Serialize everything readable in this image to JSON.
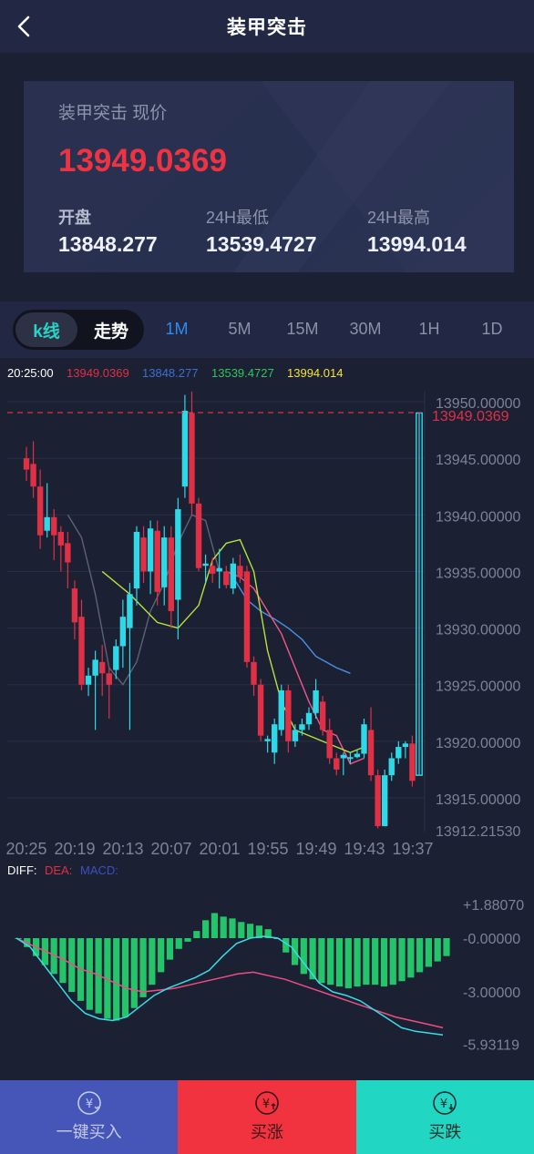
{
  "header": {
    "title": "装甲突击"
  },
  "price_card": {
    "label": "装甲突击 现价",
    "price": "13949.0369",
    "open_label": "开盘",
    "open": "13848.277",
    "low_label": "24H最低",
    "low": "13539.4727",
    "high_label": "24H最高",
    "high": "13994.014"
  },
  "tabs": {
    "kline": "k线",
    "trend": "走势",
    "periods": [
      "1M",
      "5M",
      "15M",
      "30M",
      "1H",
      "1D"
    ],
    "active_period": "1M"
  },
  "legend": {
    "time": "20:25:00",
    "v1": "13949.0369",
    "v2": "13848.277",
    "v3": "13539.4727",
    "v4": "13994.014"
  },
  "colors": {
    "up": "#2fd8e6",
    "down": "#e03046",
    "ma_yellow": "#b5e33f",
    "ma_pink": "#f0588a",
    "ma_blue": "#4a90e2",
    "ma_gray": "#5c6378",
    "macd_bar": "#24c56a",
    "diff": "#39dde6",
    "dea": "#ef4d84"
  },
  "chart_data": [
    {
      "type": "candlestick",
      "x_ticks": [
        "20:25",
        "20:19",
        "20:13",
        "20:07",
        "20:01",
        "19:55",
        "19:49",
        "19:43",
        "19:37"
      ],
      "y_ticks": [
        "13950.00000",
        "13945.00000",
        "13940.00000",
        "13935.00000",
        "13930.00000",
        "13925.00000",
        "13920.00000",
        "13915.00000"
      ],
      "y_min_label": "13912.21530",
      "ylim": [
        13912.2153,
        13950.9
      ],
      "current_price_label": "13949.0369",
      "current_price": 13949.0369,
      "candles": [
        [
          13945.0,
          13944.0,
          13946.0,
          13943.0
        ],
        [
          13944.5,
          13942.5,
          13946.5,
          13941.5
        ],
        [
          13942.5,
          13938.2,
          13944.0,
          13937.0
        ],
        [
          13938.6,
          13939.8,
          13942.8,
          13938.0
        ],
        [
          13939.8,
          13938.2,
          13940.5,
          13936.0
        ],
        [
          13938.5,
          13937.3,
          13939.0,
          13935.0
        ],
        [
          13937.5,
          13935.8,
          13938.5,
          13933.5
        ],
        [
          13933.5,
          13930.5,
          13934.2,
          13929.0
        ],
        [
          13931.0,
          13925.0,
          13932.5,
          13924.5
        ],
        [
          13925.0,
          13925.8,
          13926.5,
          13924.0
        ],
        [
          13925.8,
          13927.2,
          13928.0,
          13921.0
        ],
        [
          13927.0,
          13926.0,
          13928.5,
          13924.0
        ],
        [
          13926.0,
          13925.0,
          13926.5,
          13922.0
        ],
        [
          13926.3,
          13928.4,
          13929.0,
          13925.5
        ],
        [
          13928.4,
          13931.0,
          13932.5,
          13926.5
        ],
        [
          13930.0,
          13933.0,
          13934.0,
          13921.0
        ],
        [
          13933.5,
          13938.5,
          13939.0,
          13932.0
        ],
        [
          13938.0,
          13935.0,
          13939.0,
          13934.0
        ],
        [
          13935.0,
          13938.8,
          13939.5,
          13933.0
        ],
        [
          13938.6,
          13933.2,
          13939.5,
          13932.0
        ],
        [
          13933.6,
          13938.0,
          13939.0,
          13932.0
        ],
        [
          13938.0,
          13931.5,
          13939.0,
          13930.0
        ],
        [
          13932.5,
          13940.5,
          13941.5,
          13929.0
        ],
        [
          13942.5,
          13949.2,
          13950.6,
          13941.5
        ],
        [
          13949.0,
          13941.0,
          13950.9,
          13940.0
        ],
        [
          13941.0,
          13935.3,
          13941.5,
          13935.0
        ],
        [
          13935.5,
          13935.7,
          13936.5,
          13934.0
        ],
        [
          13935.5,
          13934.8,
          13936.2,
          13934.0
        ],
        [
          13935.0,
          13935.3,
          13937.0,
          13933.5
        ],
        [
          13935.0,
          13933.8,
          13935.5,
          13933.5
        ],
        [
          13933.5,
          13935.7,
          13936.2,
          13933.0
        ],
        [
          13935.5,
          13934.5,
          13936.5,
          13934.0
        ],
        [
          13935.0,
          13927.0,
          13935.5,
          13926.5
        ],
        [
          13927.0,
          13925.0,
          13927.5,
          13924.0
        ],
        [
          13925.0,
          13920.5,
          13925.5,
          13920.0
        ],
        [
          13920.0,
          13920.2,
          13920.5,
          13919.0
        ],
        [
          13919.0,
          13921.5,
          13922.0,
          13918.0
        ],
        [
          13921.0,
          13924.5,
          13925.0,
          13920.5
        ],
        [
          13924.5,
          13920.0,
          13925.0,
          13919.0
        ],
        [
          13920.0,
          13921.0,
          13921.5,
          13919.5
        ],
        [
          13921.0,
          13921.5,
          13922.0,
          13920.5
        ],
        [
          13921.5,
          13922.5,
          13923.0,
          13921.0
        ],
        [
          13922.5,
          13924.5,
          13925.5,
          13922.0
        ],
        [
          13923.5,
          13921.0,
          13924.0,
          13920.5
        ],
        [
          13921.0,
          13918.5,
          13922.0,
          13918.0
        ],
        [
          13918.5,
          13917.5,
          13919.0,
          13917.0
        ],
        [
          13918.5,
          13918.8,
          13919.0,
          13917.0
        ],
        [
          13918.5,
          13918.6,
          13919.0,
          13918.0
        ],
        [
          13918.6,
          13918.9,
          13919.2,
          13918.5
        ],
        [
          13918.9,
          13921.5,
          13922.0,
          13918.5
        ],
        [
          13921.0,
          13917.0,
          13923.0,
          13916.5
        ],
        [
          13917.0,
          13912.5,
          13917.5,
          13912.3
        ],
        [
          13912.5,
          13917.0,
          13917.5,
          13912.5
        ],
        [
          13917.0,
          13918.5,
          13919.0,
          13916.5
        ],
        [
          13918.5,
          13919.5,
          13920.0,
          13918.0
        ],
        [
          13919.5,
          13919.8,
          13920.0,
          13918.5
        ],
        [
          13919.8,
          13916.5,
          13920.5,
          13916.0
        ],
        [
          13917.0,
          13949.0,
          13949.0,
          13917.0
        ]
      ],
      "ma_yellow": [
        [
          13935.0,
          11
        ],
        [
          13933.0,
          15
        ],
        [
          13930.5,
          19
        ],
        [
          13930.0,
          22
        ],
        [
          13932.0,
          25
        ],
        [
          13936.0,
          27
        ],
        [
          13937.5,
          29
        ],
        [
          13937.8,
          31
        ],
        [
          13935.0,
          33
        ],
        [
          13928.0,
          35
        ],
        [
          13923.5,
          37
        ],
        [
          13921.0,
          39
        ],
        [
          13920.5,
          41
        ],
        [
          13920.0,
          43
        ],
        [
          13919.5,
          45
        ],
        [
          13919.0,
          47
        ],
        [
          13919.5,
          49
        ]
      ],
      "ma_pink": [
        [
          13935.0,
          29
        ],
        [
          13934.5,
          31
        ],
        [
          13933.5,
          33
        ],
        [
          13931.5,
          35
        ],
        [
          13929.5,
          37
        ],
        [
          13926.5,
          39
        ],
        [
          13923.5,
          41
        ],
        [
          13921.0,
          43
        ],
        [
          13920.5,
          45
        ],
        [
          13918.0,
          47
        ],
        [
          13918.5,
          49
        ]
      ],
      "ma_blue": [
        [
          13934.5,
          30
        ],
        [
          13932.5,
          32
        ],
        [
          13931.5,
          34
        ],
        [
          13930.8,
          36
        ],
        [
          13930.0,
          38
        ],
        [
          13929.0,
          40
        ],
        [
          13927.5,
          42
        ],
        [
          13926.5,
          45
        ],
        [
          13926.0,
          47
        ]
      ],
      "ma_gray": [
        [
          13940.0,
          6
        ],
        [
          13938.0,
          8
        ],
        [
          13933.0,
          10
        ],
        [
          13926.5,
          12
        ],
        [
          13925.0,
          14
        ],
        [
          13927.0,
          16
        ],
        [
          13931.5,
          18
        ],
        [
          13934.0,
          20
        ],
        [
          13937.5,
          22
        ],
        [
          13940.0,
          24
        ],
        [
          13939.5,
          26
        ],
        [
          13935.0,
          28
        ]
      ]
    },
    {
      "type": "macd",
      "legend": {
        "diff": "DIFF:",
        "dea": "DEA:",
        "macd": "MACD:"
      },
      "y_ticks": [
        "+1.88070",
        "-0.00000",
        "-3.00000",
        "-5.93119"
      ],
      "ylim": [
        -5.93119,
        1.8807
      ],
      "histogram": [
        0.0,
        -0.5,
        -1.0,
        -1.5,
        -2.0,
        -2.5,
        -3.0,
        -3.5,
        -4.0,
        -4.2,
        -4.5,
        -4.6,
        -4.4,
        -3.9,
        -3.3,
        -2.6,
        -1.9,
        -1.2,
        -0.6,
        -0.2,
        0.4,
        1.0,
        1.4,
        1.2,
        1.1,
        0.9,
        0.8,
        0.7,
        0.5,
        0.0,
        -0.8,
        -1.5,
        -2.0,
        -2.3,
        -2.5,
        -2.6,
        -2.7,
        -2.8,
        -2.7,
        -2.6,
        -2.6,
        -2.7,
        -2.6,
        -2.4,
        -2.2,
        -1.9,
        -1.6,
        -1.3,
        -1.0
      ],
      "diff": [
        0.0,
        -0.5,
        -1.5,
        -2.5,
        -3.5,
        -4.2,
        -4.5,
        -4.6,
        -4.4,
        -3.8,
        -3.2,
        -2.8,
        -2.5,
        -2.2,
        -1.8,
        -1.0,
        -0.3,
        0.0,
        0.1,
        0.0,
        -0.5,
        -1.5,
        -2.5,
        -3.0,
        -3.2,
        -3.5,
        -4.0,
        -4.5,
        -5.0,
        -5.2,
        -5.3,
        -5.4
      ],
      "dea": [
        0.0,
        -0.4,
        -0.8,
        -1.2,
        -1.7,
        -2.0,
        -2.4,
        -2.8,
        -3.0,
        -2.9,
        -2.8,
        -2.6,
        -2.4,
        -2.2,
        -2.0,
        -1.9,
        -2.1,
        -2.3,
        -2.6,
        -2.9,
        -3.2,
        -3.5,
        -3.8,
        -4.1,
        -4.4,
        -4.6,
        -4.8,
        -5.0
      ]
    }
  ],
  "bottom_actions": [
    {
      "label": "一键买入"
    },
    {
      "label": "买涨"
    },
    {
      "label": "买跌"
    }
  ]
}
